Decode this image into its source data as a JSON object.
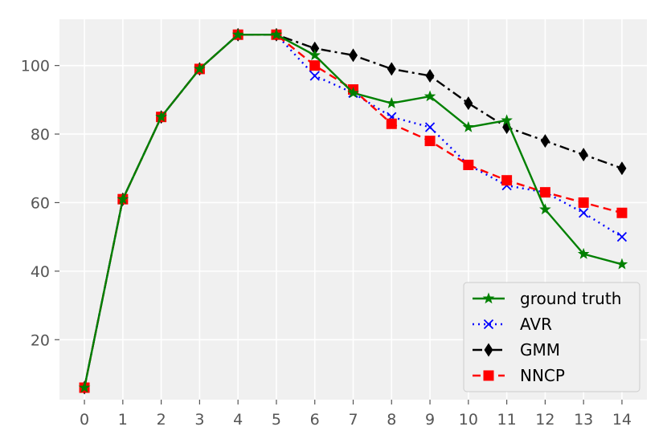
{
  "chart_data": {
    "type": "line",
    "title": "",
    "xlabel": "",
    "ylabel": "",
    "x": [
      0,
      1,
      2,
      3,
      4,
      5,
      6,
      7,
      8,
      9,
      10,
      11,
      12,
      13,
      14
    ],
    "xlim": [
      -0.65,
      14.65
    ],
    "ylim": [
      2.5,
      113.5
    ],
    "xticks": [
      "0",
      "1",
      "2",
      "3",
      "4",
      "5",
      "6",
      "7",
      "8",
      "9",
      "10",
      "11",
      "12",
      "13",
      "14"
    ],
    "yticks": [
      20,
      40,
      60,
      80,
      100
    ],
    "grid": true,
    "legend_position": "bottom-right",
    "background_color": "#f0f0f0",
    "series": [
      {
        "name": "ground truth",
        "color": "#008000",
        "line_style": "solid",
        "marker": "star-icon",
        "values": [
          6,
          61,
          85,
          99,
          109,
          109,
          103,
          92,
          89,
          91,
          82,
          84,
          58,
          45,
          42
        ]
      },
      {
        "name": "AVR",
        "color": "#0000ff",
        "line_style": "dotted",
        "marker": "x-icon",
        "values": [
          6,
          61,
          85,
          99,
          109,
          109,
          97,
          92,
          85,
          82,
          71,
          65,
          63,
          57,
          50
        ]
      },
      {
        "name": "GMM",
        "color": "#000000",
        "line_style": "dashdot",
        "marker": "thin-diamond-icon",
        "values": [
          6,
          61,
          85,
          99,
          109,
          109,
          105,
          103,
          99,
          97,
          89,
          82,
          78,
          74,
          70
        ]
      },
      {
        "name": "NNCP",
        "color": "#ff0000",
        "line_style": "dashed",
        "marker": "square-icon",
        "values": [
          6,
          61,
          85,
          99,
          109,
          109,
          100,
          93,
          83,
          78,
          71,
          66.5,
          63,
          60,
          57
        ]
      }
    ]
  }
}
